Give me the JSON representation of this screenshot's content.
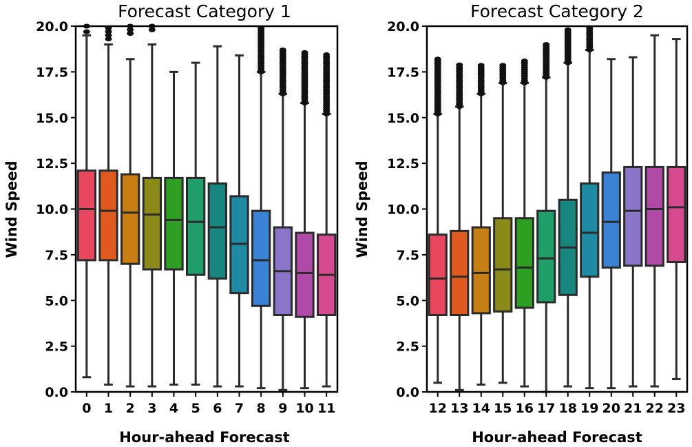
{
  "chart_data": [
    {
      "type": "boxplot",
      "title": "Forecast Category 1",
      "xlabel": "Hour-ahead Forecast",
      "ylabel": "Wind Speed",
      "ylim": [
        0,
        20
      ],
      "yticks": [
        "0.0",
        "2.5",
        "5.0",
        "7.5",
        "10.0",
        "12.5",
        "15.0",
        "17.5",
        "20.0"
      ],
      "categories": [
        "0",
        "1",
        "2",
        "3",
        "4",
        "5",
        "6",
        "7",
        "8",
        "9",
        "10",
        "11"
      ],
      "boxes": [
        {
          "whislo": 0.8,
          "q1": 7.2,
          "med": 10.0,
          "q3": 12.1,
          "whishi": 19.5,
          "fliers": [
            19.7,
            20.0
          ]
        },
        {
          "whislo": 0.4,
          "q1": 7.2,
          "med": 9.9,
          "q3": 12.1,
          "whishi": 19.0,
          "fliers": [
            19.3,
            19.5,
            19.7,
            19.9
          ]
        },
        {
          "whislo": 0.3,
          "q1": 7.0,
          "med": 9.8,
          "q3": 11.9,
          "whishi": 18.2,
          "fliers": [
            19.6,
            19.8,
            20.0
          ]
        },
        {
          "whislo": 0.3,
          "q1": 6.7,
          "med": 9.7,
          "q3": 11.7,
          "whishi": 19.0,
          "fliers": [
            19.8,
            20.0
          ]
        },
        {
          "whislo": 0.4,
          "q1": 6.7,
          "med": 9.4,
          "q3": 11.7,
          "whishi": 17.5,
          "fliers": []
        },
        {
          "whislo": 0.4,
          "q1": 6.4,
          "med": 9.3,
          "q3": 11.7,
          "whishi": 18.0,
          "fliers": []
        },
        {
          "whislo": 0.3,
          "q1": 6.2,
          "med": 9.0,
          "q3": 11.4,
          "whishi": 18.9,
          "fliers": []
        },
        {
          "whislo": 0.3,
          "q1": 5.4,
          "med": 8.1,
          "q3": 10.7,
          "whishi": 18.4,
          "fliers": []
        },
        {
          "whislo": 0.2,
          "q1": 4.7,
          "med": 7.2,
          "q3": 9.9,
          "whishi": 17.5,
          "fliers_range": [
            17.5,
            20.0
          ]
        },
        {
          "whislo": 0.1,
          "q1": 4.2,
          "med": 6.6,
          "q3": 9.0,
          "whishi": 16.3,
          "fliers_range": [
            16.3,
            18.8
          ]
        },
        {
          "whislo": 0.2,
          "q1": 4.1,
          "med": 6.5,
          "q3": 8.7,
          "whishi": 15.8,
          "fliers_range": [
            15.8,
            18.6
          ]
        },
        {
          "whislo": 0.3,
          "q1": 4.2,
          "med": 6.4,
          "q3": 8.6,
          "whishi": 15.2,
          "fliers_range": [
            15.2,
            18.5
          ]
        }
      ],
      "colors": [
        "#e8475e",
        "#e05a1f",
        "#c77e12",
        "#8a8a18",
        "#2f9f24",
        "#1f9e6a",
        "#16867f",
        "#1f8aa3",
        "#3a82d6",
        "#8b75c8",
        "#b14aa7",
        "#d84a8f"
      ]
    },
    {
      "type": "boxplot",
      "title": "Forecast Category 2",
      "xlabel": "Hour-ahead Forecast",
      "ylabel": "Wind Speed",
      "ylim": [
        0,
        20
      ],
      "yticks": [
        "0.0",
        "2.5",
        "5.0",
        "7.5",
        "10.0",
        "12.5",
        "15.0",
        "17.5",
        "20.0"
      ],
      "categories": [
        "12",
        "13",
        "14",
        "15",
        "16",
        "17",
        "18",
        "19",
        "20",
        "21",
        "22",
        "23"
      ],
      "boxes": [
        {
          "whislo": 0.5,
          "q1": 4.2,
          "med": 6.2,
          "q3": 8.6,
          "whishi": 15.2,
          "fliers_range": [
            15.2,
            18.2
          ]
        },
        {
          "whislo": 0.1,
          "q1": 4.2,
          "med": 6.3,
          "q3": 8.8,
          "whishi": 15.6,
          "fliers_range": [
            15.6,
            17.9
          ]
        },
        {
          "whislo": 0.4,
          "q1": 4.3,
          "med": 6.5,
          "q3": 9.0,
          "whishi": 16.3,
          "fliers_range": [
            16.3,
            17.9
          ]
        },
        {
          "whislo": 0.5,
          "q1": 4.4,
          "med": 6.7,
          "q3": 9.5,
          "whishi": 16.9,
          "fliers_range": [
            16.9,
            17.9
          ]
        },
        {
          "whislo": 0.3,
          "q1": 4.6,
          "med": 6.8,
          "q3": 9.5,
          "whishi": 16.9,
          "fliers_range": [
            16.9,
            18.2
          ]
        },
        {
          "whislo": 0.0,
          "q1": 4.9,
          "med": 7.3,
          "q3": 9.9,
          "whishi": 17.2,
          "fliers_range": [
            17.2,
            19.0
          ]
        },
        {
          "whislo": 0.3,
          "q1": 5.3,
          "med": 7.9,
          "q3": 10.5,
          "whishi": 18.0,
          "fliers_range": [
            18.0,
            19.9
          ]
        },
        {
          "whislo": 0.2,
          "q1": 6.3,
          "med": 8.7,
          "q3": 11.4,
          "whishi": 18.7,
          "fliers_range": [
            18.7,
            20.0
          ]
        },
        {
          "whislo": 0.2,
          "q1": 6.8,
          "med": 9.3,
          "q3": 12.0,
          "whishi": 18.2,
          "fliers": []
        },
        {
          "whislo": 0.3,
          "q1": 6.9,
          "med": 9.9,
          "q3": 12.3,
          "whishi": 18.3,
          "fliers": []
        },
        {
          "whislo": 0.3,
          "q1": 6.9,
          "med": 10.0,
          "q3": 12.3,
          "whishi": 19.5,
          "fliers": []
        },
        {
          "whislo": 0.7,
          "q1": 7.1,
          "med": 10.1,
          "q3": 12.3,
          "whishi": 19.3,
          "fliers": []
        }
      ],
      "colors": [
        "#e8475e",
        "#e05a1f",
        "#c77e12",
        "#8a8a18",
        "#2f9f24",
        "#1f9e6a",
        "#16867f",
        "#1f8aa3",
        "#3a82d6",
        "#8b75c8",
        "#b14aa7",
        "#d84a8f"
      ]
    }
  ]
}
